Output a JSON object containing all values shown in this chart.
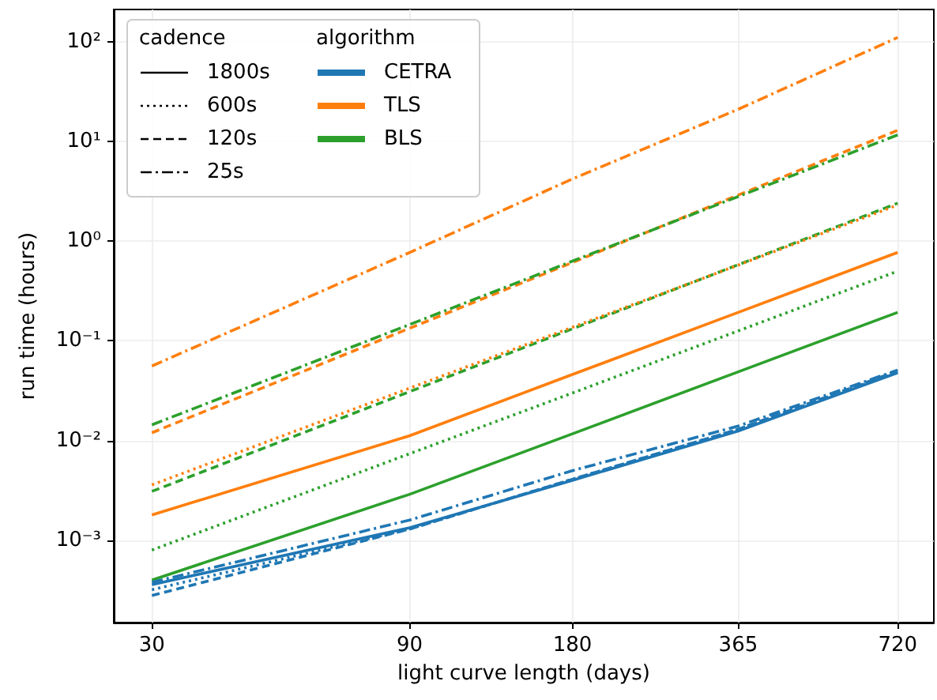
{
  "chart_data": {
    "type": "line",
    "xlabel": "light curve length (days)",
    "ylabel": "run time (hours)",
    "legend_title": [
      "cadence",
      "algorithm"
    ],
    "log": "xy",
    "grid": true,
    "legend": "top left",
    "marker": "none",
    "x": [
      30,
      90,
      180,
      365,
      720
    ],
    "xlim": [
      25.5,
      840
    ],
    "xticks": [
      30,
      90,
      180,
      365,
      720
    ],
    "ylim": [
      0.00015,
      210
    ],
    "yticks": [
      {
        "value": 0.001,
        "label": "10⁻³"
      },
      {
        "value": 0.01,
        "label": "10⁻²"
      },
      {
        "value": 0.1,
        "label": "10⁻¹"
      },
      {
        "value": 1,
        "label": "10⁰"
      },
      {
        "value": 10,
        "label": "10¹"
      },
      {
        "value": 100,
        "label": "10²"
      }
    ],
    "series": [
      {
        "name": "1800s",
        "color": "#000000",
        "line_style": "solid",
        "values": [
          null,
          null,
          null,
          null,
          null
        ]
      },
      {
        "name": "600s",
        "color": "#000000",
        "line_style": "dotted",
        "values": [
          null,
          null,
          null,
          null,
          null
        ]
      },
      {
        "name": "120s",
        "color": "#000000",
        "line_style": "dashed",
        "values": [
          null,
          null,
          null,
          null,
          null
        ]
      },
      {
        "name": "25s",
        "color": "#000000",
        "line_style": "dashdot",
        "values": [
          null,
          null,
          null,
          null,
          null
        ]
      },
      {
        "name": "CETRA",
        "color": "#1f77b4",
        "values": [
          null,
          null,
          null,
          null,
          null
        ]
      },
      {
        "name": "TLS",
        "color": "#ff7f0e",
        "values": [
          null,
          null,
          null,
          null,
          null
        ]
      },
      {
        "name": "BLS",
        "color": "#2ca02c",
        "values": [
          null,
          null,
          null,
          null,
          null
        ]
      },
      {
        "color": "#ff7f0e",
        "line_style": "dashdot",
        "values": [
          0.056,
          0.77,
          4.2,
          21,
          110
        ]
      },
      {
        "color": "#ff7f0e",
        "line_style": "dashed",
        "values": [
          0.012,
          0.134,
          0.61,
          2.9,
          12.9
        ]
      },
      {
        "color": "#2ca02c",
        "line_style": "dashdot",
        "values": [
          0.0144,
          0.146,
          0.63,
          2.8,
          11.6
        ]
      },
      {
        "color": "#2ca02c",
        "line_style": "dashed",
        "values": [
          0.0031,
          0.031,
          0.132,
          0.58,
          2.4
        ]
      },
      {
        "color": "#ff7f0e",
        "line_style": "dotted",
        "values": [
          0.0036,
          0.0336,
          0.137,
          0.575,
          2.3
        ]
      },
      {
        "color": "#ff7f0e",
        "line_style": "solid",
        "values": [
          0.0018,
          0.0112,
          0.046,
          0.193,
          0.77
        ]
      },
      {
        "color": "#2ca02c",
        "line_style": "dotted",
        "values": [
          0.0008,
          0.0074,
          0.03,
          0.126,
          0.5
        ]
      },
      {
        "color": "#2ca02c",
        "line_style": "solid",
        "values": [
          0.0004,
          0.0029,
          0.0117,
          0.049,
          0.193
        ]
      },
      {
        "color": "#1f77b4",
        "line_style": "solid",
        "values": [
          0.00036,
          0.00134,
          0.004,
          0.0125,
          0.048
        ]
      },
      {
        "color": "#1f77b4",
        "line_style": "dotted",
        "values": [
          0.00032,
          0.0013,
          0.0041,
          0.013,
          0.049
        ]
      },
      {
        "color": "#1f77b4",
        "line_style": "dashed",
        "values": [
          0.00028,
          0.0013,
          0.0041,
          0.013,
          0.05
        ]
      },
      {
        "color": "#1f77b4",
        "line_style": "dashdot",
        "values": [
          0.00038,
          0.0016,
          0.005,
          0.014,
          0.051
        ]
      }
    ]
  }
}
